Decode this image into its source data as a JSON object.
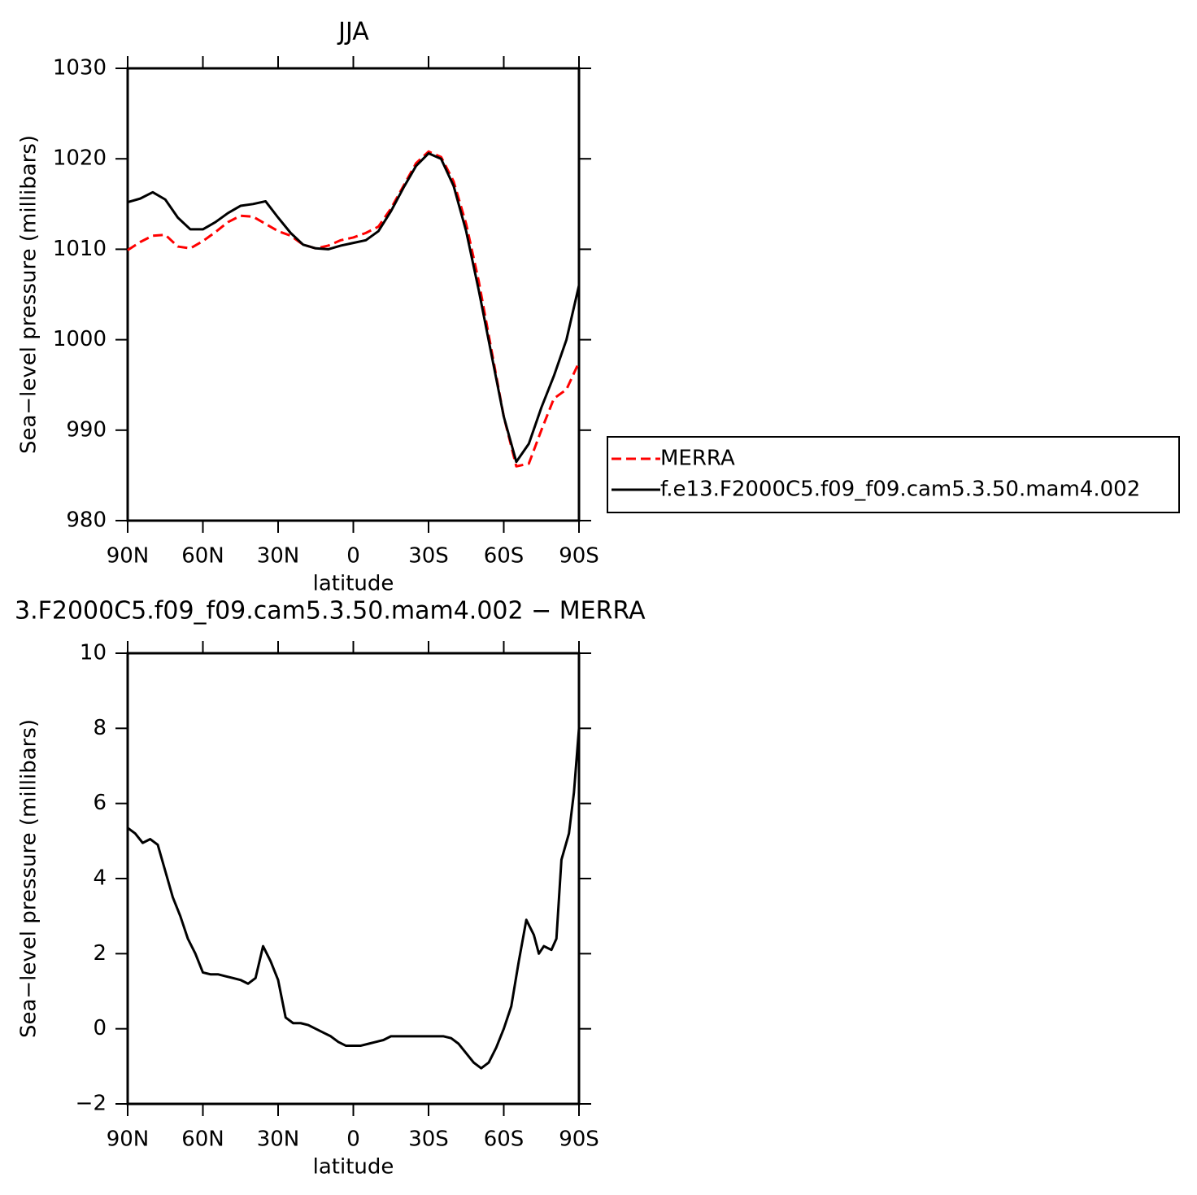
{
  "chart_data": [
    {
      "type": "line",
      "title": "JJA",
      "x_label": "latitude",
      "y_label": "Sea−level pressure (millibars)",
      "xlim": [
        90,
        -90
      ],
      "ylim": [
        980,
        1030
      ],
      "xticks": [
        {
          "value": 90,
          "label": "90N"
        },
        {
          "value": 60,
          "label": "60N"
        },
        {
          "value": 30,
          "label": "30N"
        },
        0,
        {
          "value": -30,
          "label": "30S"
        },
        {
          "value": -60,
          "label": "60S"
        },
        {
          "value": -90,
          "label": "90S"
        }
      ],
      "yticks": [
        980,
        990,
        1000,
        1010,
        1020,
        1030
      ],
      "legend": "right",
      "x": [
        90,
        85,
        80,
        75,
        70,
        65,
        60,
        55,
        50,
        45,
        40,
        35,
        30,
        25,
        20,
        15,
        10,
        5,
        0,
        -5,
        -10,
        -15,
        -20,
        -25,
        -30,
        -35,
        -40,
        -45,
        -50,
        -55,
        -60,
        -65,
        -70,
        -75,
        -80,
        -85,
        -90
      ],
      "series": [
        {
          "name": "MERRA",
          "color": "#ff0000",
          "style": "dashed",
          "values": [
            1009.9,
            1010.8,
            1011.5,
            1011.6,
            1010.3,
            1010.1,
            1010.9,
            1011.9,
            1013.0,
            1013.7,
            1013.6,
            1012.8,
            1012.0,
            1011.5,
            1010.5,
            1010.1,
            1010.4,
            1011.0,
            1011.3,
            1011.8,
            1012.5,
            1014.5,
            1017.0,
            1019.5,
            1020.8,
            1020.2,
            1017.5,
            1012.8,
            1006.5,
            999.0,
            991.5,
            986.0,
            986.3,
            990.0,
            993.5,
            994.5,
            997.5
          ]
        },
        {
          "name": "f.e13.F2000C5.f09_f09.cam5.3.50.mam4.002",
          "color": "#000000",
          "style": "solid",
          "values": [
            1015.2,
            1015.6,
            1016.3,
            1015.5,
            1013.5,
            1012.2,
            1012.2,
            1013.0,
            1014.0,
            1014.8,
            1015.0,
            1015.3,
            1013.5,
            1011.8,
            1010.5,
            1010.1,
            1010.0,
            1010.4,
            1010.7,
            1011.0,
            1012.0,
            1014.2,
            1016.8,
            1019.2,
            1020.6,
            1020.0,
            1017.0,
            1012.0,
            1005.5,
            998.5,
            991.5,
            986.5,
            988.5,
            992.5,
            996.0,
            1000.0,
            1006.0
          ]
        }
      ]
    },
    {
      "type": "line",
      "title": "3.F2000C5.f09_f09.cam5.3.50.mam4.002 − MERRA",
      "x_label": "latitude",
      "y_label": "Sea−level pressure (millibars)",
      "xlim": [
        90,
        -90
      ],
      "ylim": [
        -2,
        10
      ],
      "xticks": [
        {
          "value": 90,
          "label": "90N"
        },
        {
          "value": 60,
          "label": "60N"
        },
        {
          "value": 30,
          "label": "30N"
        },
        0,
        {
          "value": -30,
          "label": "30S"
        },
        {
          "value": -60,
          "label": "60S"
        },
        {
          "value": -90,
          "label": "90S"
        }
      ],
      "yticks": [
        {
          "value": -2,
          "label": "−2"
        },
        0,
        2,
        4,
        6,
        8,
        10
      ],
      "x": [
        90,
        87,
        84,
        81,
        78,
        75,
        72,
        69,
        66,
        63,
        60,
        57,
        54,
        51,
        48,
        45,
        42,
        39,
        36,
        33,
        30,
        27,
        24,
        21,
        18,
        15,
        12,
        9,
        6,
        3,
        0,
        -3,
        -6,
        -9,
        -12,
        -15,
        -18,
        -21,
        -24,
        -27,
        -30,
        -33,
        -36,
        -39,
        -42,
        -45,
        -48,
        -51,
        -54,
        -57,
        -60,
        -63,
        -66,
        -69,
        -72,
        -74,
        -76,
        -79,
        -81,
        -83,
        -86,
        -88,
        -90
      ],
      "series": [
        {
          "color": "#000000",
          "style": "solid",
          "values": [
            5.35,
            5.2,
            4.95,
            5.05,
            4.9,
            4.2,
            3.5,
            3.0,
            2.4,
            2.0,
            1.5,
            1.45,
            1.45,
            1.4,
            1.35,
            1.3,
            1.2,
            1.35,
            2.2,
            1.8,
            1.3,
            0.3,
            0.15,
            0.15,
            0.1,
            0.0,
            -0.1,
            -0.2,
            -0.35,
            -0.45,
            -0.45,
            -0.45,
            -0.4,
            -0.35,
            -0.3,
            -0.2,
            -0.2,
            -0.2,
            -0.2,
            -0.2,
            -0.2,
            -0.2,
            -0.2,
            -0.25,
            -0.4,
            -0.65,
            -0.9,
            -1.05,
            -0.9,
            -0.5,
            0.0,
            0.6,
            1.8,
            2.9,
            2.5,
            2.0,
            2.2,
            2.1,
            2.4,
            4.5,
            5.2,
            6.3,
            8.0
          ]
        }
      ]
    }
  ]
}
